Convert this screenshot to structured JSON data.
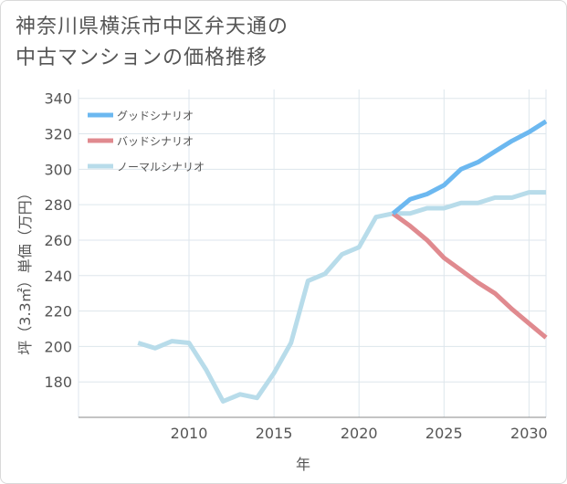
{
  "title_lines": [
    "神奈川県横浜市中区弁天通の",
    "中古マンションの価格推移"
  ],
  "chart_data": {
    "type": "line",
    "title": "神奈川県横浜市中区弁天通の中古マンションの価格推移",
    "xlabel": "年",
    "ylabel": "坪（3.3㎡）単価（万円）",
    "xlim": [
      2003.5,
      2031
    ],
    "ylim": [
      160,
      345
    ],
    "x_ticks": [
      2010,
      2015,
      2020,
      2025,
      2030
    ],
    "y_ticks": [
      180,
      200,
      220,
      240,
      260,
      280,
      300,
      320,
      340
    ],
    "legend_position": "top-left",
    "series": [
      {
        "name": "グッドシナリオ",
        "color": "#6cb8f0",
        "x": [
          2022,
          2023,
          2024,
          2025,
          2026,
          2027,
          2028,
          2029,
          2030,
          2031
        ],
        "values": [
          275,
          283,
          286,
          291,
          300,
          304,
          310,
          316,
          321,
          327
        ]
      },
      {
        "name": "バッドシナリオ",
        "color": "#e08a8f",
        "x": [
          2022,
          2023,
          2024,
          2025,
          2026,
          2027,
          2028,
          2029,
          2030,
          2031
        ],
        "values": [
          275,
          268,
          260,
          250,
          243,
          236,
          230,
          221,
          213,
          205
        ]
      },
      {
        "name": "ノーマルシナリオ",
        "color": "#b8dcea",
        "x": [
          2007,
          2008,
          2009,
          2010,
          2011,
          2012,
          2013,
          2014,
          2015,
          2016,
          2017,
          2018,
          2019,
          2020,
          2021,
          2022,
          2023,
          2024,
          2025,
          2026,
          2027,
          2028,
          2029,
          2030,
          2031
        ],
        "values": [
          202,
          199,
          203,
          202,
          187,
          169,
          173,
          171,
          185,
          202,
          237,
          241,
          252,
          256,
          273,
          275,
          275,
          278,
          278,
          281,
          281,
          284,
          284,
          287,
          287
        ]
      }
    ]
  }
}
